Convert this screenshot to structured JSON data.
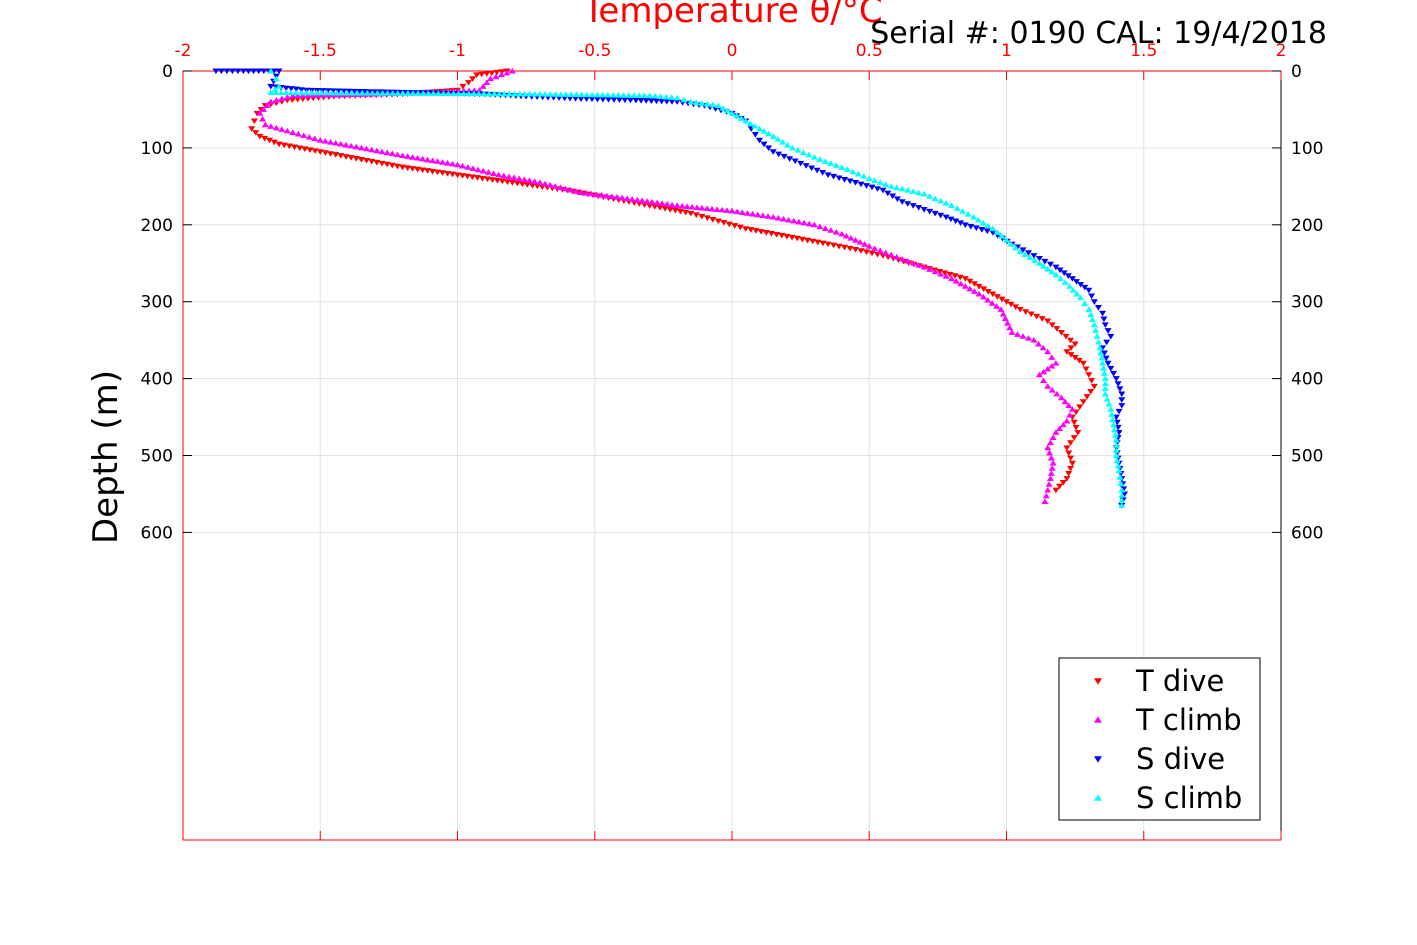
{
  "chart_data": {
    "type": "scatter",
    "title": "Temperature θ/°C",
    "annotation": "Serial #: 0190  CAL: 19/4/2018",
    "xlabel": "Temperature θ/°C",
    "ylabel": "Depth (m)",
    "xlim": [
      -2,
      2
    ],
    "ylim": [
      0,
      1000
    ],
    "y_reversed": true,
    "x_axis_location": "top",
    "x_ticks": [
      -2,
      -1.5,
      -1,
      -0.5,
      0,
      0.5,
      1,
      1.5,
      2
    ],
    "x_tick_labels": [
      "-2",
      "-1.5",
      "-1",
      "-0.5",
      "0",
      "0.5",
      "1",
      "1.5",
      "2"
    ],
    "y_ticks": [
      0,
      100,
      200,
      300,
      400,
      500,
      600
    ],
    "y_tick_labels": [
      "0",
      "100",
      "200",
      "300",
      "400",
      "500",
      "600"
    ],
    "grid": true,
    "legend_position": "bottom-right",
    "colors": {
      "axis": "#ff0000",
      "grid": "#e0e0e0"
    },
    "series": [
      {
        "name": "T dive",
        "marker": "triangle-down",
        "color": "#ff0000",
        "points": [
          [
            -0.82,
            0
          ],
          [
            -0.93,
            5
          ],
          [
            -0.96,
            15
          ],
          [
            -1.0,
            25
          ],
          [
            -1.2,
            30
          ],
          [
            -1.45,
            33
          ],
          [
            -1.62,
            38
          ],
          [
            -1.7,
            45
          ],
          [
            -1.73,
            55
          ],
          [
            -1.74,
            65
          ],
          [
            -1.75,
            75
          ],
          [
            -1.72,
            85
          ],
          [
            -1.65,
            95
          ],
          [
            -1.5,
            105
          ],
          [
            -1.35,
            115
          ],
          [
            -1.2,
            125
          ],
          [
            -1.0,
            135
          ],
          [
            -0.8,
            145
          ],
          [
            -0.6,
            155
          ],
          [
            -0.45,
            165
          ],
          [
            -0.3,
            175
          ],
          [
            -0.15,
            185
          ],
          [
            -0.05,
            195
          ],
          [
            0.05,
            205
          ],
          [
            0.2,
            215
          ],
          [
            0.35,
            225
          ],
          [
            0.45,
            232
          ],
          [
            0.55,
            240
          ],
          [
            0.7,
            255
          ],
          [
            0.85,
            270
          ],
          [
            0.95,
            290
          ],
          [
            1.05,
            310
          ],
          [
            1.15,
            325
          ],
          [
            1.2,
            340
          ],
          [
            1.25,
            355
          ],
          [
            1.22,
            365
          ],
          [
            1.28,
            380
          ],
          [
            1.3,
            395
          ],
          [
            1.32,
            410
          ],
          [
            1.28,
            430
          ],
          [
            1.24,
            450
          ],
          [
            1.26,
            470
          ],
          [
            1.22,
            490
          ],
          [
            1.24,
            510
          ],
          [
            1.22,
            530
          ],
          [
            1.18,
            545
          ]
        ]
      },
      {
        "name": "T climb",
        "marker": "triangle-up",
        "color": "#ff00ff",
        "points": [
          [
            -0.8,
            0
          ],
          [
            -0.88,
            10
          ],
          [
            -0.92,
            25
          ],
          [
            -1.3,
            30
          ],
          [
            -1.6,
            32
          ],
          [
            -1.68,
            40
          ],
          [
            -1.72,
            55
          ],
          [
            -1.7,
            70
          ],
          [
            -1.6,
            80
          ],
          [
            -1.5,
            90
          ],
          [
            -1.35,
            100
          ],
          [
            -1.2,
            110
          ],
          [
            -1.0,
            122
          ],
          [
            -0.85,
            135
          ],
          [
            -0.7,
            145
          ],
          [
            -0.55,
            158
          ],
          [
            -0.4,
            165
          ],
          [
            -0.2,
            175
          ],
          [
            0.0,
            182
          ],
          [
            0.15,
            190
          ],
          [
            0.3,
            200
          ],
          [
            0.4,
            212
          ],
          [
            0.5,
            228
          ],
          [
            0.6,
            242
          ],
          [
            0.7,
            255
          ],
          [
            0.8,
            270
          ],
          [
            0.9,
            290
          ],
          [
            0.98,
            310
          ],
          [
            1.02,
            340
          ],
          [
            1.1,
            350
          ],
          [
            1.15,
            365
          ],
          [
            1.18,
            380
          ],
          [
            1.12,
            395
          ],
          [
            1.15,
            410
          ],
          [
            1.2,
            425
          ],
          [
            1.24,
            440
          ],
          [
            1.22,
            455
          ],
          [
            1.18,
            470
          ],
          [
            1.15,
            490
          ],
          [
            1.17,
            510
          ],
          [
            1.16,
            530
          ],
          [
            1.15,
            545
          ],
          [
            1.14,
            560
          ]
        ]
      },
      {
        "name": "S dive",
        "marker": "triangle-down",
        "color": "#0000ff",
        "points": [
          [
            -1.88,
            0
          ],
          [
            -1.78,
            0
          ],
          [
            -1.65,
            0
          ],
          [
            -1.68,
            20
          ],
          [
            -1.55,
            25
          ],
          [
            -1.3,
            27
          ],
          [
            -0.9,
            30
          ],
          [
            -0.75,
            33
          ],
          [
            -0.55,
            36
          ],
          [
            -0.35,
            38
          ],
          [
            -0.2,
            40
          ],
          [
            -0.1,
            45
          ],
          [
            0.0,
            55
          ],
          [
            0.05,
            65
          ],
          [
            0.07,
            75
          ],
          [
            0.1,
            90
          ],
          [
            0.15,
            105
          ],
          [
            0.25,
            120
          ],
          [
            0.35,
            135
          ],
          [
            0.45,
            145
          ],
          [
            0.55,
            155
          ],
          [
            0.62,
            170
          ],
          [
            0.7,
            180
          ],
          [
            0.78,
            190
          ],
          [
            0.85,
            200
          ],
          [
            0.95,
            210
          ],
          [
            1.02,
            225
          ],
          [
            1.1,
            240
          ],
          [
            1.18,
            255
          ],
          [
            1.24,
            270
          ],
          [
            1.3,
            285
          ],
          [
            1.32,
            300
          ],
          [
            1.35,
            315
          ],
          [
            1.36,
            330
          ],
          [
            1.38,
            345
          ],
          [
            1.35,
            360
          ],
          [
            1.37,
            380
          ],
          [
            1.4,
            400
          ],
          [
            1.42,
            420
          ],
          [
            1.42,
            435
          ],
          [
            1.4,
            450
          ],
          [
            1.41,
            470
          ],
          [
            1.4,
            490
          ],
          [
            1.41,
            510
          ],
          [
            1.42,
            530
          ],
          [
            1.43,
            550
          ],
          [
            1.42,
            565
          ]
        ]
      },
      {
        "name": "S climb",
        "marker": "triangle-up",
        "color": "#00ffff",
        "points": [
          [
            -1.68,
            0
          ],
          [
            -1.66,
            10
          ],
          [
            -1.65,
            20
          ],
          [
            -1.68,
            28
          ],
          [
            -0.7,
            30
          ],
          [
            -0.3,
            32
          ],
          [
            -0.2,
            35
          ],
          [
            -0.15,
            40
          ],
          [
            -0.05,
            45
          ],
          [
            0.0,
            55
          ],
          [
            0.05,
            65
          ],
          [
            0.1,
            75
          ],
          [
            0.15,
            85
          ],
          [
            0.22,
            100
          ],
          [
            0.32,
            115
          ],
          [
            0.42,
            128
          ],
          [
            0.5,
            140
          ],
          [
            0.58,
            150
          ],
          [
            0.7,
            160
          ],
          [
            0.8,
            175
          ],
          [
            0.88,
            190
          ],
          [
            0.95,
            205
          ],
          [
            1.0,
            220
          ],
          [
            1.05,
            235
          ],
          [
            1.12,
            250
          ],
          [
            1.18,
            265
          ],
          [
            1.23,
            280
          ],
          [
            1.27,
            295
          ],
          [
            1.3,
            310
          ],
          [
            1.32,
            330
          ],
          [
            1.33,
            345
          ],
          [
            1.34,
            360
          ],
          [
            1.35,
            380
          ],
          [
            1.36,
            400
          ],
          [
            1.36,
            420
          ],
          [
            1.38,
            440
          ],
          [
            1.39,
            460
          ],
          [
            1.4,
            480
          ],
          [
            1.4,
            500
          ],
          [
            1.41,
            520
          ],
          [
            1.42,
            545
          ],
          [
            1.42,
            565
          ]
        ]
      }
    ]
  }
}
